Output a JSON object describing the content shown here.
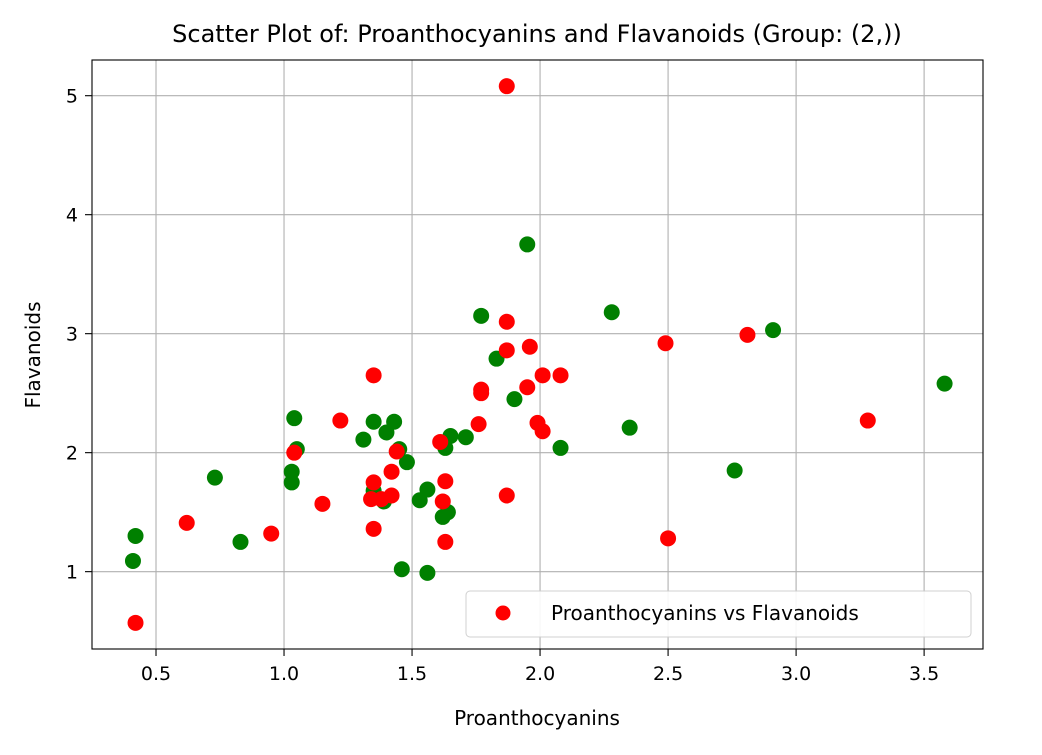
{
  "chart_data": {
    "type": "scatter",
    "title": "Scatter Plot of: Proanthocyanins and Flavanoids (Group: (2,))",
    "xlabel": "Proanthocyanins",
    "ylabel": "Flavanoids",
    "xlim": [
      0.25,
      3.73
    ],
    "ylim": [
      0.35,
      5.3
    ],
    "xticks": [
      0.5,
      1.0,
      1.5,
      2.0,
      2.5,
      3.0,
      3.5
    ],
    "xtick_labels": [
      "0.5",
      "1.0",
      "1.5",
      "2.0",
      "2.5",
      "3.0",
      "3.5"
    ],
    "yticks": [
      1,
      2,
      3,
      4,
      5
    ],
    "ytick_labels": [
      "1",
      "2",
      "3",
      "4",
      "5"
    ],
    "grid": true,
    "legend": {
      "placement": "lower-right",
      "label": "Proanthocyanins vs Flavanoids"
    },
    "series": [
      {
        "color": "#008000",
        "points": [
          [
            0.41,
            1.09
          ],
          [
            0.42,
            1.3
          ],
          [
            0.73,
            1.79
          ],
          [
            0.83,
            1.25
          ],
          [
            1.03,
            1.84
          ],
          [
            1.03,
            1.75
          ],
          [
            1.04,
            2.29
          ],
          [
            1.05,
            2.03
          ],
          [
            1.31,
            2.11
          ],
          [
            1.35,
            2.26
          ],
          [
            1.35,
            1.68
          ],
          [
            1.39,
            1.59
          ],
          [
            1.4,
            2.17
          ],
          [
            1.43,
            2.26
          ],
          [
            1.45,
            2.03
          ],
          [
            1.46,
            1.02
          ],
          [
            1.48,
            1.92
          ],
          [
            1.53,
            1.6
          ],
          [
            1.56,
            1.69
          ],
          [
            1.56,
            0.99
          ],
          [
            1.62,
            1.46
          ],
          [
            1.63,
            2.04
          ],
          [
            1.64,
            1.5
          ],
          [
            1.65,
            2.14
          ],
          [
            1.71,
            2.13
          ],
          [
            1.77,
            3.15
          ],
          [
            1.83,
            2.79
          ],
          [
            1.9,
            2.45
          ],
          [
            1.95,
            3.75
          ],
          [
            2.08,
            2.04
          ],
          [
            2.28,
            3.18
          ],
          [
            2.35,
            2.21
          ],
          [
            2.76,
            1.85
          ],
          [
            2.91,
            3.03
          ],
          [
            3.58,
            2.58
          ]
        ]
      },
      {
        "name": "Proanthocyanins vs Flavanoids",
        "color": "#ff0000",
        "points": [
          [
            0.42,
            0.57
          ],
          [
            0.62,
            1.41
          ],
          [
            0.95,
            1.32
          ],
          [
            1.04,
            2.0
          ],
          [
            1.15,
            1.57
          ],
          [
            1.22,
            2.27
          ],
          [
            1.34,
            1.61
          ],
          [
            1.35,
            2.65
          ],
          [
            1.35,
            1.75
          ],
          [
            1.35,
            1.36
          ],
          [
            1.38,
            1.61
          ],
          [
            1.42,
            1.84
          ],
          [
            1.42,
            1.64
          ],
          [
            1.44,
            2.01
          ],
          [
            1.61,
            2.09
          ],
          [
            1.62,
            1.59
          ],
          [
            1.63,
            1.76
          ],
          [
            1.63,
            1.25
          ],
          [
            1.76,
            2.24
          ],
          [
            1.77,
            2.53
          ],
          [
            1.77,
            2.5
          ],
          [
            1.87,
            5.08
          ],
          [
            1.87,
            3.1
          ],
          [
            1.87,
            2.86
          ],
          [
            1.87,
            1.64
          ],
          [
            1.95,
            2.55
          ],
          [
            1.96,
            2.89
          ],
          [
            1.99,
            2.25
          ],
          [
            2.01,
            2.65
          ],
          [
            2.01,
            2.18
          ],
          [
            2.08,
            2.65
          ],
          [
            2.49,
            2.92
          ],
          [
            2.5,
            1.28
          ],
          [
            2.81,
            2.99
          ],
          [
            3.28,
            2.27
          ]
        ]
      }
    ]
  }
}
